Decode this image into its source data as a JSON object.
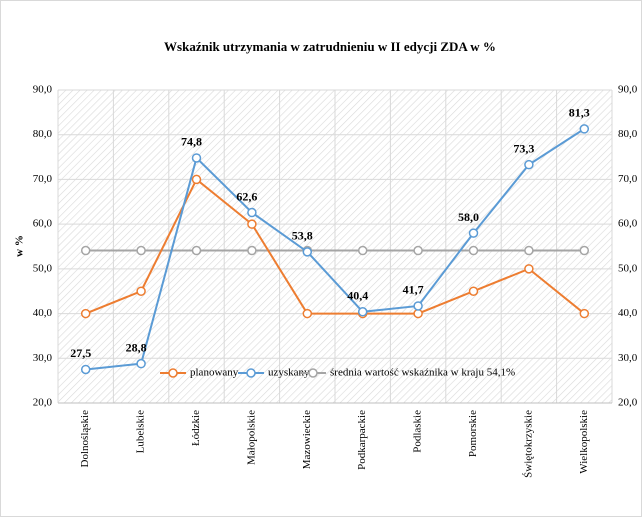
{
  "chart_data": {
    "type": "line",
    "title": "Wskaźnik utrzymania  w zatrudnieniu  w II edycji ZDA w %",
    "y_label": "w %",
    "categories": [
      "Dolnośląskie",
      "Lubelskie",
      "Łódzkie",
      "Małopolskie",
      "Mazowieckie",
      "Podkarpackie",
      "Podlaskie",
      "Pomorskie",
      "Świętokrzyskie",
      "Wielkopolskie"
    ],
    "series": [
      {
        "name": "planowany",
        "color": "#ed7d31",
        "values": [
          40,
          45,
          70,
          60,
          40,
          40,
          40,
          45,
          50,
          40
        ]
      },
      {
        "name": "uzyskany",
        "color": "#5b9bd5",
        "values": [
          27.5,
          28.8,
          74.8,
          62.6,
          53.8,
          40.4,
          41.7,
          58.0,
          73.3,
          81.3
        ],
        "value_labels": [
          "27,5",
          "28,8",
          "74,8",
          "62,6",
          "53,8",
          "40,4",
          "41,7",
          "58,0",
          "73,3",
          "81,3"
        ]
      },
      {
        "name": "średnia wartość wskaźnika w kraju 54,1%",
        "color": "#a5a5a5",
        "values": [
          54.1,
          54.1,
          54.1,
          54.1,
          54.1,
          54.1,
          54.1,
          54.1,
          54.1,
          54.1
        ]
      }
    ],
    "ylim": [
      20,
      90
    ],
    "yticks": [
      {
        "value": 20,
        "label": "20,0"
      },
      {
        "value": 30,
        "label": "30,0"
      },
      {
        "value": 40,
        "label": "40,0"
      },
      {
        "value": 50,
        "label": "50,0"
      },
      {
        "value": 60,
        "label": "60,0"
      },
      {
        "value": 70,
        "label": "70,0"
      },
      {
        "value": 80,
        "label": "80,0"
      },
      {
        "value": 90,
        "label": "90,0"
      }
    ],
    "y2lim": [
      20,
      90
    ],
    "y2ticks": [
      {
        "value": 20,
        "label": "20,0"
      },
      {
        "value": 30,
        "label": "30,0"
      },
      {
        "value": 40,
        "label": "40,0"
      },
      {
        "value": 50,
        "label": "50,0"
      },
      {
        "value": 60,
        "label": "60,0"
      },
      {
        "value": 70,
        "label": "70,0"
      },
      {
        "value": 80,
        "label": "80,0"
      },
      {
        "value": 90,
        "label": "90,0"
      }
    ],
    "grid": true
  }
}
